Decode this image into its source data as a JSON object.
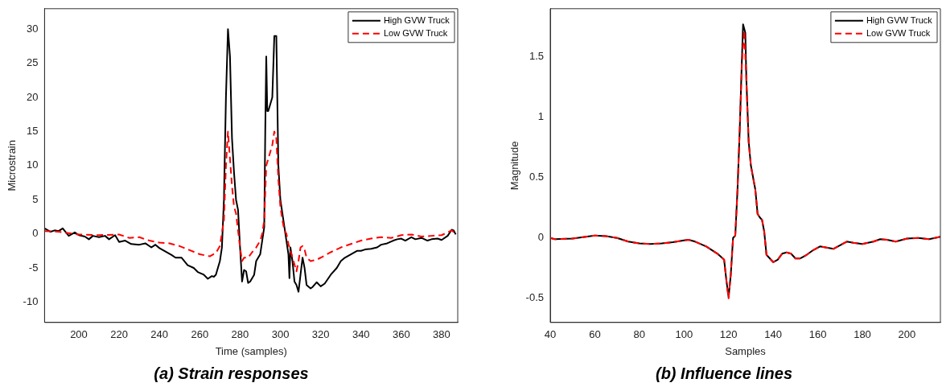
{
  "chart_data": [
    {
      "type": "line",
      "title": "(a) Strain responses",
      "xlabel": "Time (samples)",
      "ylabel": "Microstrain",
      "xlim": [
        183,
        388
      ],
      "ylim": [
        -13,
        33
      ],
      "xticks": [
        200,
        220,
        240,
        260,
        280,
        300,
        320,
        340,
        360,
        380
      ],
      "yticks": [
        -10,
        -5,
        0,
        5,
        10,
        15,
        20,
        25,
        30
      ],
      "legend": "top right",
      "series": [
        {
          "name": "High GVW Truck",
          "color": "#000000",
          "line_style": "solid",
          "x": [
            183,
            186,
            188,
            190,
            192,
            195,
            198,
            200,
            203,
            205,
            207,
            210,
            213,
            215,
            218,
            220,
            223,
            226,
            230,
            233,
            236,
            238,
            240,
            243,
            246,
            248,
            251,
            254,
            257,
            259,
            262,
            264,
            266,
            267,
            268,
            270,
            271,
            272,
            273,
            274,
            275,
            276,
            277,
            278,
            279,
            280,
            281,
            282,
            283,
            284,
            285,
            287,
            288,
            290,
            291,
            292,
            292.5,
            293,
            293.5,
            294,
            296,
            297,
            298,
            299,
            300,
            301,
            302,
            303,
            304,
            304.5,
            305,
            306,
            307,
            308,
            309,
            310,
            311,
            312,
            313,
            315,
            316,
            318,
            320,
            322,
            325,
            328,
            330,
            332,
            335,
            338,
            340,
            342,
            345,
            348,
            350,
            353,
            356,
            358,
            360,
            362,
            365,
            367,
            370,
            373,
            375,
            378,
            380,
            383,
            385,
            386,
            387
          ],
          "values": [
            0.8,
            0.3,
            0.5,
            0.4,
            0.8,
            -0.3,
            0.2,
            -0.2,
            -0.4,
            -0.8,
            -0.3,
            -0.5,
            -0.3,
            -0.8,
            -0.2,
            -1.2,
            -1,
            -1.5,
            -1.6,
            -1.4,
            -2,
            -1.6,
            -2.1,
            -2.6,
            -3.1,
            -3.5,
            -3.5,
            -4.6,
            -5,
            -5.6,
            -6,
            -6.6,
            -6.2,
            -6.3,
            -6,
            -4,
            -2,
            5,
            20,
            30,
            26,
            14,
            9,
            5,
            3.5,
            -2,
            -7,
            -5.3,
            -5.5,
            -7.2,
            -7,
            -6,
            -4,
            -3,
            -1,
            1,
            15,
            26,
            18,
            18,
            20,
            29,
            29,
            10,
            5,
            3,
            1,
            -1,
            -3,
            -6.5,
            -2,
            -4,
            -7,
            -7.5,
            -8.5,
            -6,
            -3.5,
            -5,
            -7.5,
            -8,
            -7.8,
            -7.1,
            -7.7,
            -7.3,
            -6,
            -5,
            -4,
            -3.5,
            -3,
            -2.5,
            -2.5,
            -2.3,
            -2.2,
            -2,
            -1.6,
            -1.4,
            -1,
            -0.8,
            -0.7,
            -1,
            -0.5,
            -0.8,
            -0.6,
            -1,
            -0.8,
            -0.7,
            -0.9,
            -0.3,
            0.6,
            0.5,
            -0.1
          ]
        },
        {
          "name": "Low GVW Truck",
          "color": "#ff0000",
          "line_style": "dashed",
          "x": [
            183,
            190,
            200,
            210,
            220,
            225,
            230,
            235,
            240,
            245,
            250,
            255,
            260,
            265,
            268,
            270,
            272,
            273,
            274,
            275,
            276,
            277,
            278,
            279,
            280,
            281,
            282,
            284,
            286,
            288,
            290,
            291,
            292,
            293,
            294,
            296,
            297,
            298,
            299,
            300,
            301,
            302,
            303,
            304,
            306,
            308,
            309,
            310,
            311,
            312,
            313,
            315,
            318,
            320,
            325,
            330,
            335,
            340,
            345,
            350,
            355,
            360,
            365,
            370,
            375,
            380,
            385,
            387
          ],
          "values": [
            0.4,
            0.3,
            -0.1,
            -0.2,
            -0.1,
            -0.6,
            -0.5,
            -1,
            -1.3,
            -1.4,
            -1.8,
            -2.4,
            -3,
            -3.3,
            -2.8,
            -1.8,
            2,
            10,
            15,
            11,
            7,
            4,
            3,
            0.5,
            -2,
            -4,
            -3.5,
            -3.5,
            -2.7,
            -2,
            -1,
            0,
            2,
            10,
            11,
            13,
            15,
            14,
            8,
            4,
            2,
            0.5,
            0,
            -1.5,
            -3.5,
            -5.5,
            -4,
            -2,
            -1.8,
            -2.3,
            -3.5,
            -4,
            -3.8,
            -3.5,
            -2.7,
            -2,
            -1.5,
            -1,
            -0.7,
            -0.5,
            -0.6,
            -0.2,
            -0.1,
            -0.4,
            -0.3,
            -0.2,
            0.5,
            0
          ]
        }
      ]
    },
    {
      "type": "line",
      "title": "(b) Influence lines",
      "xlabel": "Samples",
      "ylabel": "Magnitude",
      "xlim": [
        40,
        215
      ],
      "ylim": [
        -0.7,
        1.9
      ],
      "xticks": [
        40,
        60,
        80,
        100,
        120,
        140,
        160,
        180,
        200
      ],
      "yticks": [
        -0.5,
        0,
        0.5,
        1,
        1.5
      ],
      "legend": "top right",
      "series": [
        {
          "name": "High GVW Truck",
          "color": "#000000",
          "line_style": "solid",
          "x": [
            40,
            42,
            50,
            60,
            65,
            70,
            75,
            80,
            85,
            90,
            95,
            100,
            102,
            105,
            110,
            115,
            118,
            119,
            120,
            121,
            122,
            123,
            124,
            125,
            126,
            126.5,
            127.5,
            128,
            129,
            130,
            132,
            133,
            134,
            135,
            136,
            137,
            138,
            140,
            142,
            144,
            146,
            148,
            150,
            152,
            155,
            158,
            161,
            164,
            167,
            170,
            173,
            176,
            180,
            185,
            188,
            191,
            195,
            200,
            205,
            210,
            215
          ],
          "values": [
            0,
            -0.01,
            -0.005,
            0.02,
            0.015,
            0,
            -0.03,
            -0.045,
            -0.05,
            -0.045,
            -0.035,
            -0.02,
            -0.015,
            -0.03,
            -0.07,
            -0.13,
            -0.18,
            -0.35,
            -0.49,
            -0.3,
            0,
            0.02,
            0.4,
            0.9,
            1.5,
            1.77,
            1.7,
            1.3,
            0.8,
            0.6,
            0.4,
            0.2,
            0.17,
            0.15,
            0.05,
            -0.14,
            -0.16,
            -0.2,
            -0.18,
            -0.13,
            -0.12,
            -0.13,
            -0.17,
            -0.17,
            -0.14,
            -0.1,
            -0.07,
            -0.08,
            -0.09,
            -0.06,
            -0.03,
            -0.04,
            -0.05,
            -0.03,
            -0.01,
            -0.015,
            -0.03,
            -0.005,
            0,
            -0.01,
            0.01
          ]
        },
        {
          "name": "Low GVW Truck",
          "color": "#ff0000",
          "line_style": "dashed",
          "x": [
            40,
            42,
            50,
            60,
            65,
            70,
            75,
            80,
            85,
            90,
            95,
            100,
            102,
            105,
            110,
            115,
            118,
            119,
            120,
            121,
            122,
            123,
            124,
            125,
            126,
            127,
            128,
            129,
            130,
            132,
            133,
            134,
            135,
            136,
            137,
            138,
            140,
            142,
            144,
            146,
            148,
            150,
            152,
            155,
            158,
            161,
            164,
            167,
            170,
            173,
            176,
            180,
            185,
            188,
            191,
            195,
            200,
            205,
            210,
            215
          ],
          "values": [
            0,
            -0.01,
            -0.005,
            0.02,
            0.015,
            0,
            -0.03,
            -0.045,
            -0.05,
            -0.045,
            -0.035,
            -0.02,
            -0.015,
            -0.03,
            -0.07,
            -0.13,
            -0.18,
            -0.35,
            -0.5,
            -0.3,
            0,
            0.02,
            0.4,
            0.9,
            1.45,
            1.72,
            1.3,
            0.8,
            0.6,
            0.4,
            0.2,
            0.17,
            0.15,
            0.05,
            -0.14,
            -0.16,
            -0.2,
            -0.18,
            -0.13,
            -0.12,
            -0.13,
            -0.17,
            -0.17,
            -0.14,
            -0.1,
            -0.07,
            -0.08,
            -0.09,
            -0.06,
            -0.03,
            -0.04,
            -0.05,
            -0.03,
            -0.01,
            -0.015,
            -0.03,
            -0.005,
            0,
            -0.01,
            0.01
          ]
        }
      ]
    }
  ]
}
